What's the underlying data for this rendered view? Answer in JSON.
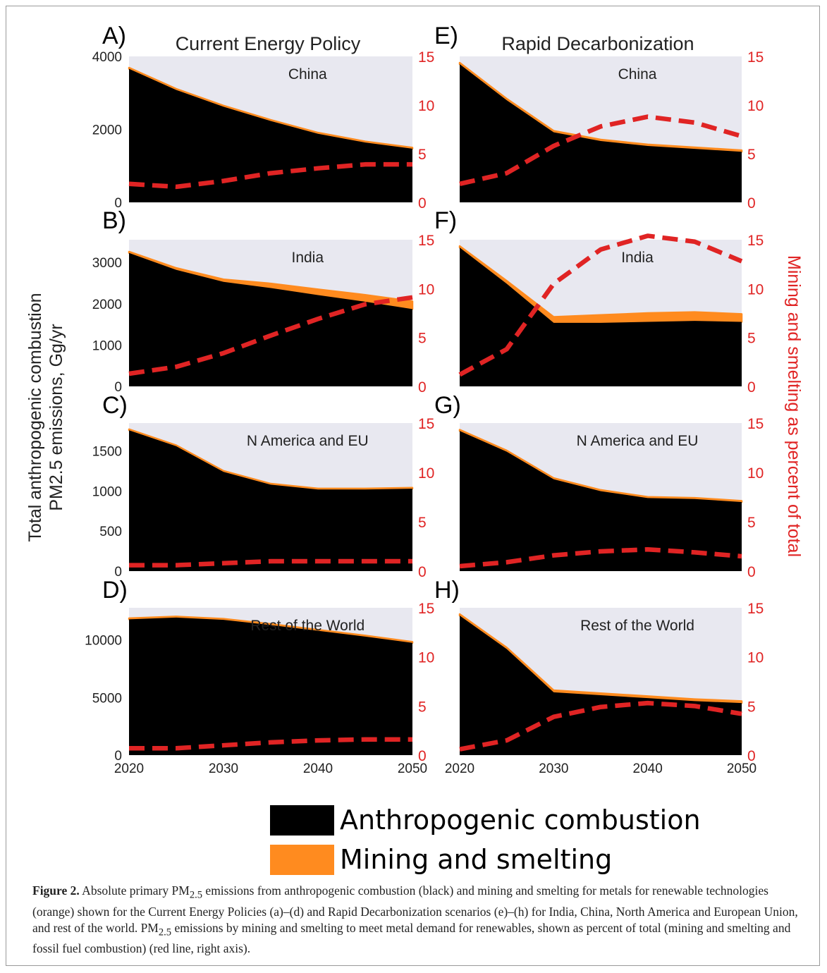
{
  "colors": {
    "combustion": "#000000",
    "mining": "#ff8b1f",
    "pct_line": "#e02424",
    "panel_bg": "#e8e8f0"
  },
  "columns": [
    {
      "title": "Current Energy Policy"
    },
    {
      "title": "Rapid Decarbonization"
    }
  ],
  "left_axis_label": [
    "Total anthropogenic combustion",
    "PM2.5 emissions, Gg/yr"
  ],
  "right_axis_label": "Mining and smelting as percent of total",
  "x_tick_labels": [
    "2020",
    "2030",
    "2040",
    "2050"
  ],
  "legend": [
    {
      "label": "Anthropogenic combustion",
      "color": "#000000"
    },
    {
      "label": "Mining and smelting",
      "color": "#ff8b1f"
    }
  ],
  "caption": {
    "lead": "Figure 2.",
    "text_1": " Absolute primary PM",
    "sub_1": "2.5",
    "text_2": " emissions from anthropogenic combustion (black) and mining and smelting for metals for renewable technologies (orange) shown for the Current Energy Policies (a)–(d) and Rapid Decarbonization scenarios (e)–(h) for India, China, North America and European Union, and rest of the world. PM",
    "sub_2": "2.5",
    "text_3": " emissions by mining and smelting to meet metal demand for renewables, shown as percent of total (mining and smelting and fossil fuel combustion) (red line, right axis)."
  },
  "chart_data": [
    {
      "panel": "A)",
      "type": "area",
      "region": "China",
      "x": [
        2020,
        2025,
        2030,
        2035,
        2040,
        2045,
        2050
      ],
      "xlim": [
        2020,
        2050
      ],
      "ylim": [
        0,
        4000
      ],
      "yticks": [
        0,
        2000,
        4000
      ],
      "yticklabels": [
        "0",
        "2000",
        "4000"
      ],
      "y2lim": [
        0,
        15
      ],
      "y2ticks": [
        0,
        5,
        10,
        15
      ],
      "y2ticklabels": [
        "0",
        "5",
        "10",
        "15"
      ],
      "series": [
        {
          "name": "Anthropogenic combustion",
          "values": [
            3660,
            3080,
            2620,
            2230,
            1880,
            1640,
            1470
          ]
        },
        {
          "name": "Mining and smelting",
          "values": [
            30,
            30,
            30,
            30,
            30,
            30,
            30
          ]
        },
        {
          "name": "Mining and smelting as percent of total",
          "axis": "right",
          "values": [
            1.9,
            1.6,
            2.2,
            3.0,
            3.5,
            3.9,
            3.9
          ]
        }
      ]
    },
    {
      "panel": "B)",
      "type": "area",
      "region": "India",
      "x": [
        2020,
        2025,
        2030,
        2035,
        2040,
        2045,
        2050
      ],
      "xlim": [
        2020,
        2050
      ],
      "ylim": [
        0,
        3550
      ],
      "yticks": [
        0,
        1000,
        2000,
        3000
      ],
      "yticklabels": [
        "0",
        "1000",
        "2000",
        "3000"
      ],
      "y2lim": [
        0,
        15
      ],
      "y2ticks": [
        0,
        5,
        10,
        15
      ],
      "y2ticklabels": [
        "0",
        "5",
        "10",
        "15"
      ],
      "series": [
        {
          "name": "Anthropogenic combustion",
          "values": [
            3230,
            2820,
            2530,
            2380,
            2210,
            2050,
            1870
          ]
        },
        {
          "name": "Mining and smelting",
          "values": [
            30,
            45,
            60,
            110,
            140,
            165,
            190
          ]
        },
        {
          "name": "Mining and smelting as percent of total",
          "axis": "right",
          "values": [
            1.3,
            2.0,
            3.4,
            5.2,
            6.9,
            8.4,
            9.1
          ]
        }
      ]
    },
    {
      "panel": "C)",
      "type": "area",
      "region": "N America and EU",
      "x": [
        2020,
        2025,
        2030,
        2035,
        2040,
        2045,
        2050
      ],
      "xlim": [
        2020,
        2050
      ],
      "ylim": [
        0,
        1850
      ],
      "yticks": [
        0,
        500,
        1000,
        1500
      ],
      "yticklabels": [
        "0",
        "500",
        "1000",
        "1500"
      ],
      "y2lim": [
        0,
        15
      ],
      "y2ticks": [
        0,
        5,
        10,
        15
      ],
      "y2ticklabels": [
        "0",
        "5",
        "10",
        "15"
      ],
      "series": [
        {
          "name": "Anthropogenic combustion",
          "values": [
            1760,
            1560,
            1240,
            1080,
            1020,
            1020,
            1030
          ]
        },
        {
          "name": "Mining and smelting",
          "values": [
            12,
            12,
            12,
            12,
            12,
            12,
            12
          ]
        },
        {
          "name": "Mining and smelting as percent of total",
          "axis": "right",
          "values": [
            0.6,
            0.6,
            0.8,
            1.0,
            1.0,
            1.0,
            1.0
          ]
        }
      ]
    },
    {
      "panel": "D)",
      "type": "area",
      "region": "Rest of the World",
      "x": [
        2020,
        2025,
        2030,
        2035,
        2040,
        2045,
        2050
      ],
      "xlim": [
        2020,
        2050
      ],
      "ylim": [
        0,
        12800
      ],
      "yticks": [
        0,
        5000,
        10000
      ],
      "yticklabels": [
        "0",
        "5000",
        "10000"
      ],
      "y2lim": [
        0,
        15
      ],
      "y2ticks": [
        0,
        5,
        10,
        15
      ],
      "y2ticklabels": [
        "0",
        "5",
        "10",
        "15"
      ],
      "series": [
        {
          "name": "Anthropogenic combustion",
          "values": [
            11800,
            11950,
            11750,
            11300,
            10800,
            10300,
            9750
          ]
        },
        {
          "name": "Mining and smelting",
          "values": [
            90,
            90,
            90,
            90,
            90,
            90,
            90
          ]
        },
        {
          "name": "Mining and smelting as percent of total",
          "axis": "right",
          "values": [
            0.7,
            0.7,
            1.0,
            1.3,
            1.5,
            1.6,
            1.6
          ]
        }
      ]
    },
    {
      "panel": "E)",
      "type": "area",
      "region": "China",
      "x": [
        2020,
        2025,
        2030,
        2035,
        2040,
        2045,
        2050
      ],
      "xlim": [
        2020,
        2050
      ],
      "ylim": [
        0,
        15
      ],
      "y2lim": [
        0,
        15
      ],
      "y2ticks": [
        0,
        5,
        10,
        15
      ],
      "y2ticklabels": [
        "0",
        "5",
        "10",
        "15"
      ],
      "series": [
        {
          "name": "Anthropogenic combustion",
          "values": [
            14.2,
            10.5,
            7.2,
            6.3,
            5.8,
            5.5,
            5.2
          ]
        },
        {
          "name": "Mining and smelting",
          "values": [
            0.15,
            0.15,
            0.15,
            0.15,
            0.15,
            0.15,
            0.15
          ]
        },
        {
          "name": "Mining and smelting as percent of total",
          "axis": "right",
          "values": [
            1.9,
            3.0,
            5.8,
            7.8,
            8.8,
            8.2,
            6.8
          ]
        }
      ]
    },
    {
      "panel": "F)",
      "type": "area",
      "region": "India",
      "x": [
        2020,
        2025,
        2030,
        2035,
        2040,
        2045,
        2050
      ],
      "xlim": [
        2020,
        2050
      ],
      "ylim": [
        0,
        15
      ],
      "y2lim": [
        0,
        15
      ],
      "y2ticks": [
        0,
        5,
        10,
        15
      ],
      "y2ticklabels": [
        "0",
        "5",
        "10",
        "15"
      ],
      "series": [
        {
          "name": "Anthropogenic combustion",
          "values": [
            14.2,
            10.5,
            6.5,
            6.5,
            6.6,
            6.7,
            6.6
          ]
        },
        {
          "name": "Mining and smelting",
          "values": [
            0.15,
            0.3,
            0.6,
            0.8,
            0.9,
            0.9,
            0.8
          ]
        },
        {
          "name": "Mining and smelting as percent of total",
          "axis": "right",
          "values": [
            1.2,
            3.8,
            10.5,
            14.0,
            15.4,
            14.8,
            12.8
          ]
        }
      ]
    },
    {
      "panel": "G)",
      "type": "area",
      "region": "N America and EU",
      "x": [
        2020,
        2025,
        2030,
        2035,
        2040,
        2045,
        2050
      ],
      "xlim": [
        2020,
        2050
      ],
      "ylim": [
        0,
        15
      ],
      "y2lim": [
        0,
        15
      ],
      "y2ticks": [
        0,
        5,
        10,
        15
      ],
      "y2ticklabels": [
        "0",
        "5",
        "10",
        "15"
      ],
      "series": [
        {
          "name": "Anthropogenic combustion",
          "values": [
            14.2,
            12.1,
            9.3,
            8.1,
            7.4,
            7.3,
            7.0
          ]
        },
        {
          "name": "Mining and smelting",
          "values": [
            0.12,
            0.12,
            0.12,
            0.12,
            0.12,
            0.12,
            0.12
          ]
        },
        {
          "name": "Mining and smelting as percent of total",
          "axis": "right",
          "values": [
            0.5,
            0.9,
            1.6,
            2.0,
            2.2,
            1.9,
            1.5
          ]
        }
      ]
    },
    {
      "panel": "H)",
      "type": "area",
      "region": "Rest of the World",
      "x": [
        2020,
        2025,
        2030,
        2035,
        2040,
        2045,
        2050
      ],
      "xlim": [
        2020,
        2050
      ],
      "ylim": [
        0,
        15
      ],
      "y2lim": [
        0,
        15
      ],
      "y2ticks": [
        0,
        5,
        10,
        15
      ],
      "y2ticklabels": [
        "0",
        "5",
        "10",
        "15"
      ],
      "series": [
        {
          "name": "Anthropogenic combustion",
          "values": [
            14.2,
            10.8,
            6.4,
            6.1,
            5.8,
            5.5,
            5.3
          ]
        },
        {
          "name": "Mining and smelting",
          "values": [
            0.15,
            0.15,
            0.2,
            0.2,
            0.2,
            0.2,
            0.2
          ]
        },
        {
          "name": "Mining and smelting as percent of total",
          "axis": "right",
          "values": [
            0.6,
            1.5,
            3.9,
            4.9,
            5.3,
            5.0,
            4.2
          ]
        }
      ]
    }
  ]
}
